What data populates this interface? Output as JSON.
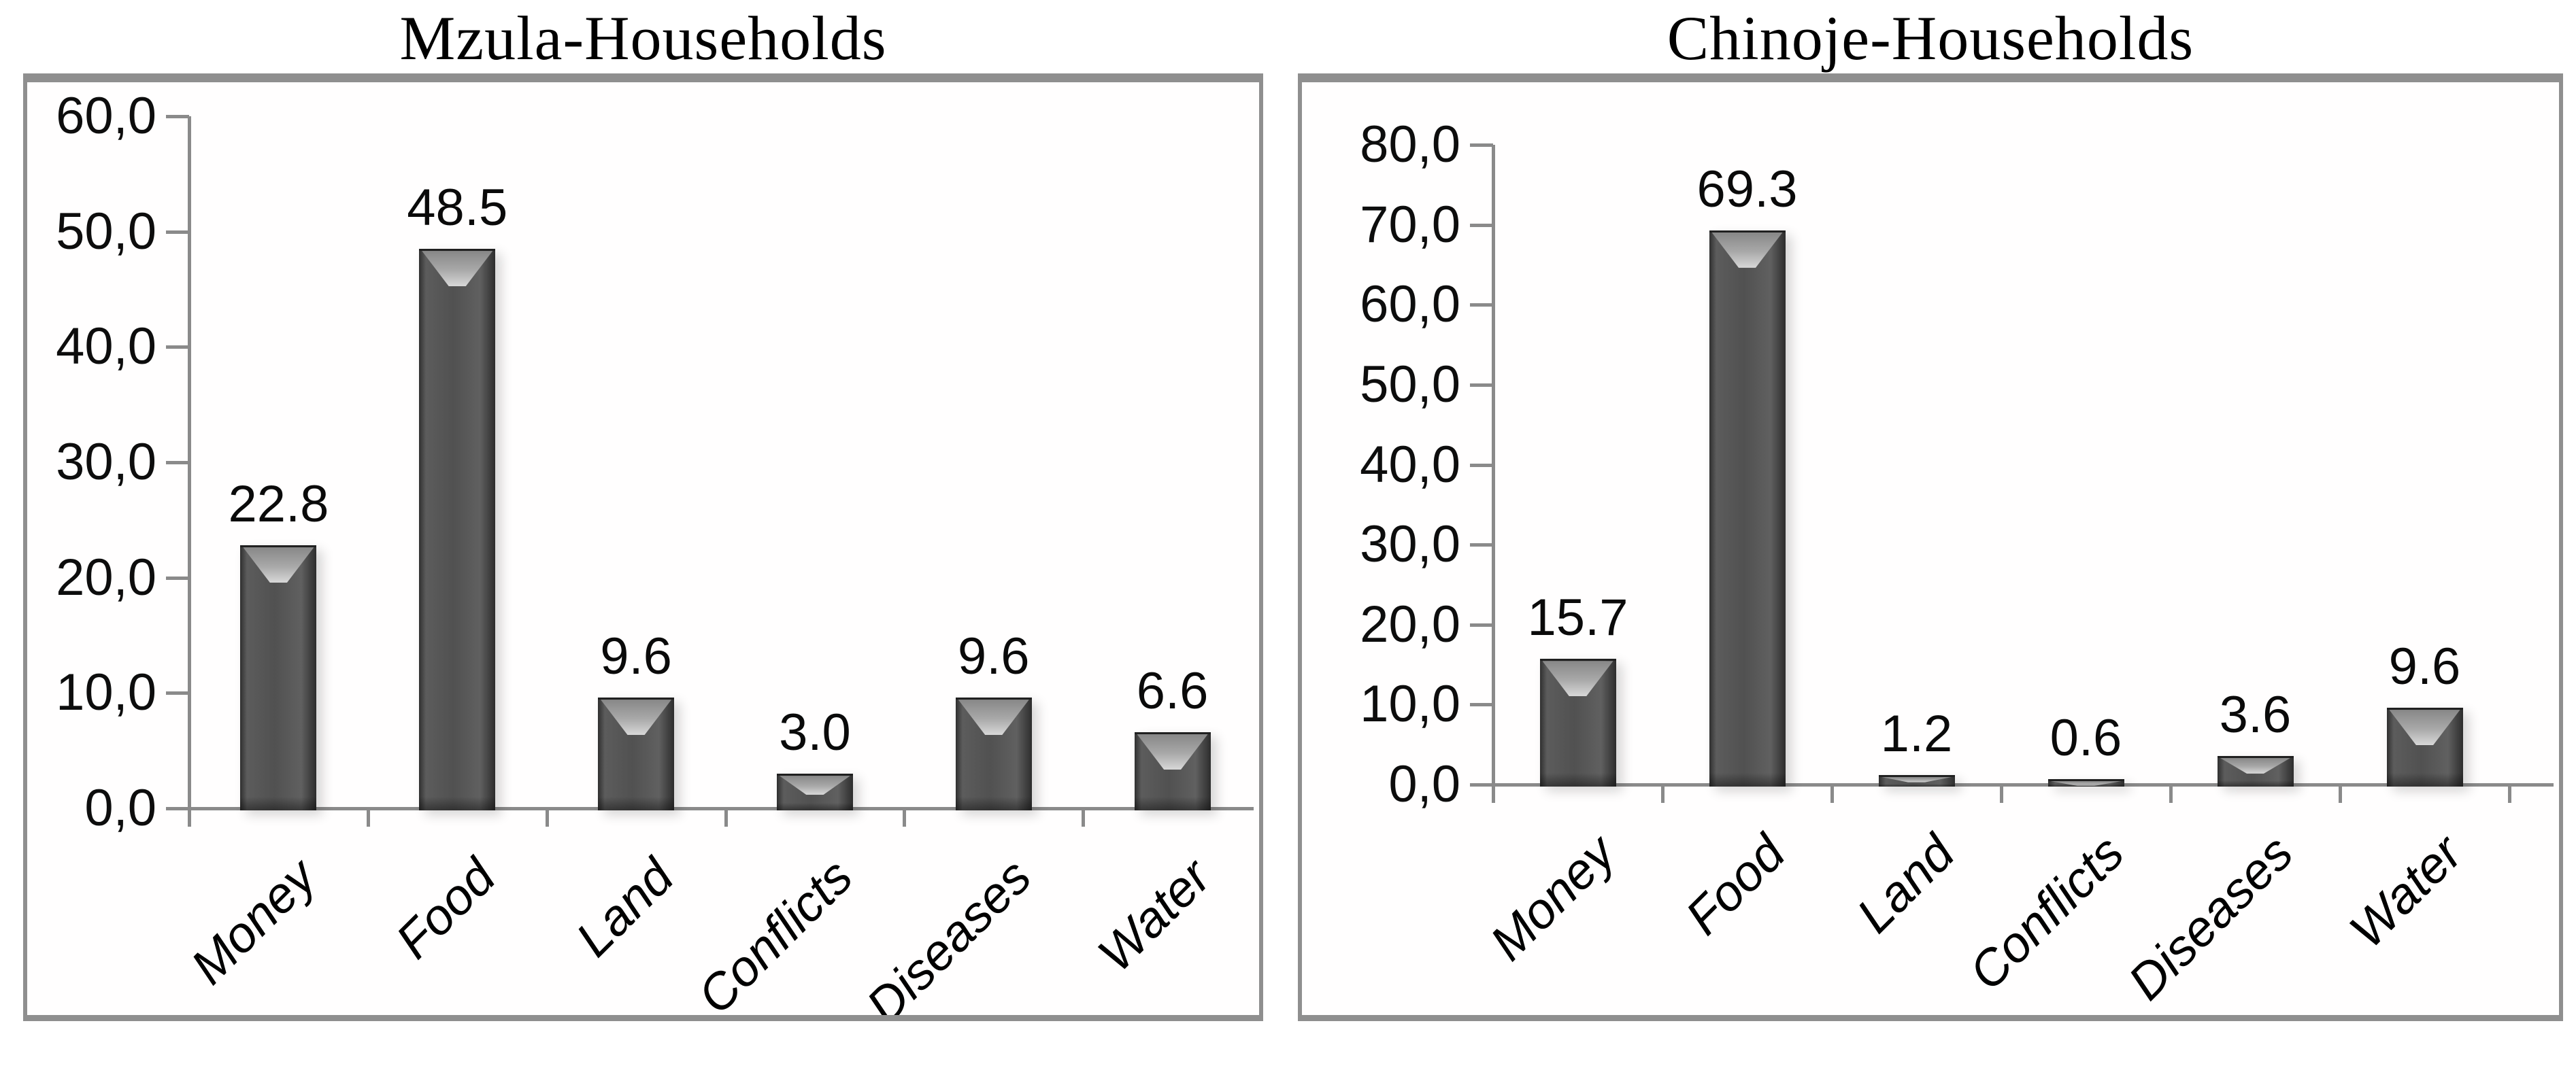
{
  "figure": {
    "background": "#ffffff",
    "bar_color": "#4c4c4c",
    "axis_color": "#8a8a8a",
    "frame_color": "#8f8f8f",
    "text_color": "#0d0d0d"
  },
  "chart_data": [
    {
      "type": "bar",
      "title": "Mzula-Households",
      "categories": [
        "Money",
        "Food",
        "Land",
        "Conflicts",
        "Diseases",
        "Water"
      ],
      "values": [
        22.8,
        48.5,
        9.6,
        3.0,
        9.6,
        6.6
      ],
      "value_labels": [
        "22.8",
        "48.5",
        "9.6",
        "3.0",
        "9.6",
        "6.6"
      ],
      "xlabel": "",
      "ylabel": "",
      "ylim": [
        0,
        60
      ],
      "y_tick_step": 10,
      "y_tick_labels": [
        "0,0",
        "10,0",
        "20,0",
        "30,0",
        "40,0",
        "50,0",
        "60,0"
      ],
      "grid": false,
      "legend": false
    },
    {
      "type": "bar",
      "title": "Chinoje-Households",
      "categories": [
        "Money",
        "Food",
        "Land",
        "Conflicts",
        "Diseases",
        "Water"
      ],
      "values": [
        15.7,
        69.3,
        1.2,
        0.6,
        3.6,
        9.6
      ],
      "value_labels": [
        "15.7",
        "69.3",
        "1.2",
        "0.6",
        "3.6",
        "9.6"
      ],
      "xlabel": "",
      "ylabel": "",
      "ylim": [
        0,
        80
      ],
      "y_tick_step": 10,
      "y_tick_labels": [
        "0,0",
        "10,0",
        "20,0",
        "30,0",
        "40,0",
        "50,0",
        "60,0",
        "70,0",
        "80,0"
      ],
      "grid": false,
      "legend": false
    }
  ]
}
